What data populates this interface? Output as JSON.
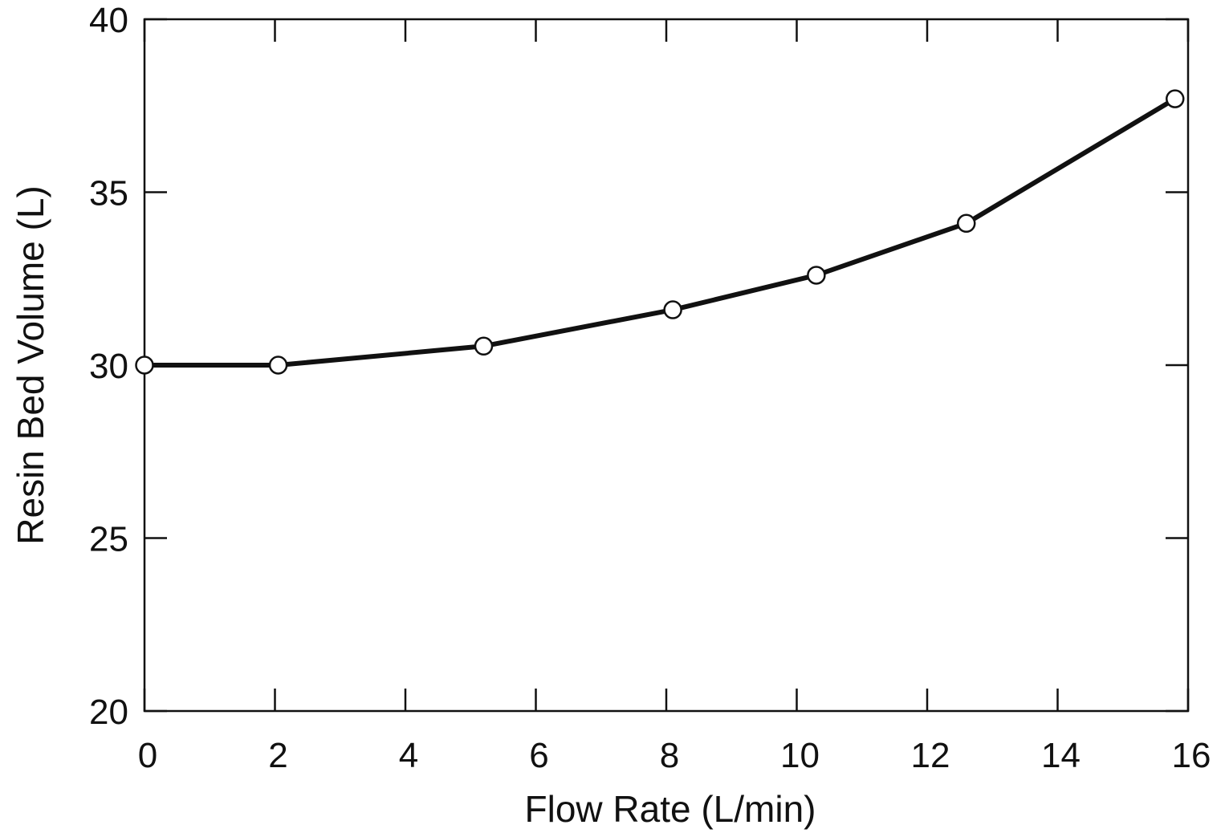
{
  "chart_data": {
    "type": "line",
    "title": "",
    "xlabel": "Flow Rate (L/min)",
    "ylabel": "Resin Bed Volume (L)",
    "xlim": [
      0,
      16
    ],
    "ylim": [
      20,
      40
    ],
    "x_ticks": [
      0,
      2,
      4,
      6,
      8,
      10,
      12,
      14,
      16
    ],
    "y_ticks": [
      20,
      25,
      30,
      35,
      40
    ],
    "x_tick_labels": [
      "0",
      "2",
      "4",
      "6",
      "8",
      "10",
      "12",
      "14",
      "16"
    ],
    "y_tick_labels": [
      "20",
      "25",
      "30",
      "35",
      "40"
    ],
    "grid": false,
    "legend": "none",
    "marker": "open-circle",
    "line_color": "#111111",
    "marker_fill": "#ffffff",
    "series": [
      {
        "x": [
          0,
          2.05,
          5.2,
          8.1,
          10.3,
          12.6,
          15.8
        ],
        "y": [
          30.0,
          30.0,
          30.55,
          31.6,
          32.6,
          34.1,
          37.7
        ]
      }
    ]
  }
}
